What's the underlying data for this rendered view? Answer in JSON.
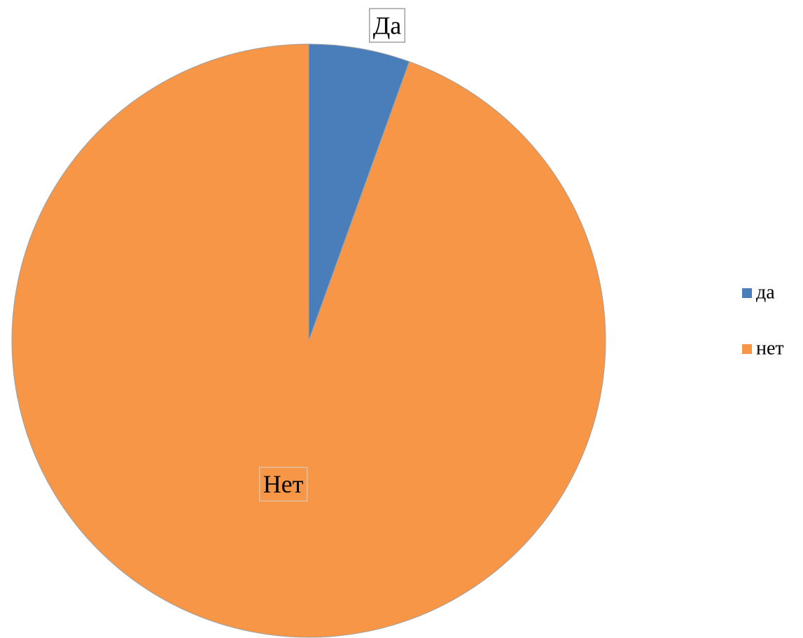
{
  "chart_data": {
    "type": "pie",
    "categories": [
      "да",
      "нет"
    ],
    "labels": [
      "Да",
      "Нет"
    ],
    "values": [
      5.5,
      94.5
    ],
    "colors": [
      "#4a7ebb",
      "#f79646"
    ],
    "legend": "right"
  }
}
